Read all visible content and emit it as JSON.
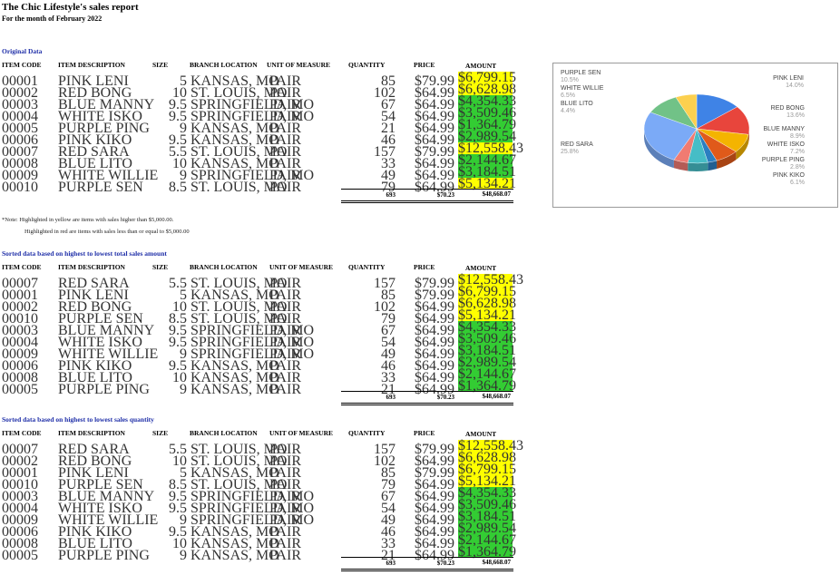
{
  "report": {
    "title": "The Chic Lifestyle's sales report",
    "subtitle": "For the month of February 2022"
  },
  "headers": {
    "item_code": "ITEM CODE",
    "item_description": "ITEM DESCRIPTION",
    "size": "SIZE",
    "branch_location": "BRANCH LOCATION",
    "unit_of_measure": "UNIT OF MEASURE",
    "quantity": "QUANTITY",
    "price": "PRICE",
    "amount": "AMOUNT"
  },
  "colors": {
    "yellow": "#ffff00",
    "green": "#33cc33",
    "section_title": "#1f2fa8"
  },
  "sections": [
    {
      "title": "Original Data",
      "rows": [
        {
          "code": "00001",
          "desc": "PINK LENI",
          "size": "5",
          "city": "KANSAS, MO",
          "uom": "PAIR",
          "qty": "85",
          "price": "$79.99",
          "amount": "$6,799.15",
          "hl": "yellow"
        },
        {
          "code": "00002",
          "desc": "RED BONG",
          "size": "10",
          "city": "ST. LOUIS, MO",
          "uom": "PAIR",
          "qty": "102",
          "price": "$64.99",
          "amount": "$6,628.98",
          "hl": "yellow"
        },
        {
          "code": "00003",
          "desc": "BLUE MANNY",
          "size": "9.5",
          "city": "SPRINGFIELD, MO",
          "uom": "PAIR",
          "qty": "67",
          "price": "$64.99",
          "amount": "$4,354.33",
          "hl": "green"
        },
        {
          "code": "00004",
          "desc": "WHITE ISKO",
          "size": "9.5",
          "city": "SPRINGFIELD, MO",
          "uom": "PAIR",
          "qty": "54",
          "price": "$64.99",
          "amount": "$3,509.46",
          "hl": "green"
        },
        {
          "code": "00005",
          "desc": "PURPLE PING",
          "size": "9",
          "city": "KANSAS, MO",
          "uom": "PAIR",
          "qty": "21",
          "price": "$64.99",
          "amount": "$1,364.79",
          "hl": "green"
        },
        {
          "code": "00006",
          "desc": "PINK KIKO",
          "size": "9.5",
          "city": "KANSAS, MO",
          "uom": "PAIR",
          "qty": "46",
          "price": "$64.99",
          "amount": "$2,989.54",
          "hl": "green"
        },
        {
          "code": "00007",
          "desc": "RED SARA",
          "size": "5.5",
          "city": "ST. LOUIS, MO",
          "uom": "PAIR",
          "qty": "157",
          "price": "$79.99",
          "amount": "$12,558.43",
          "hl": "yellow"
        },
        {
          "code": "00008",
          "desc": "BLUE LITO",
          "size": "10",
          "city": "KANSAS, MO",
          "uom": "PAIR",
          "qty": "33",
          "price": "$64.99",
          "amount": "$2,144.67",
          "hl": "green"
        },
        {
          "code": "00009",
          "desc": "WHITE WILLIE",
          "size": "9",
          "city": "SPRINGFIELD, MO",
          "uom": "PAIR",
          "qty": "49",
          "price": "$64.99",
          "amount": "$3,184.51",
          "hl": "green"
        },
        {
          "code": "00010",
          "desc": "PURPLE SEN",
          "size": "8.5",
          "city": "ST. LOUIS, MO",
          "uom": "PAIR",
          "qty": "79",
          "price": "$64.99",
          "amount": "$5,134.21",
          "hl": "yellow"
        }
      ],
      "total": {
        "qty": "693",
        "price": "$70.23",
        "amount": "$48,668.07"
      }
    },
    {
      "title": "Sorted data based on highest to lowest total sales amount",
      "rows": [
        {
          "code": "00007",
          "desc": "RED SARA",
          "size": "5.5",
          "city": "ST. LOUIS, MO",
          "uom": "PAIR",
          "qty": "157",
          "price": "$79.99",
          "amount": "$12,558.43",
          "hl": "yellow"
        },
        {
          "code": "00001",
          "desc": "PINK LENI",
          "size": "5",
          "city": "KANSAS, MO",
          "uom": "PAIR",
          "qty": "85",
          "price": "$79.99",
          "amount": "$6,799.15",
          "hl": "yellow"
        },
        {
          "code": "00002",
          "desc": "RED BONG",
          "size": "10",
          "city": "ST. LOUIS, MO",
          "uom": "PAIR",
          "qty": "102",
          "price": "$64.99",
          "amount": "$6,628.98",
          "hl": "yellow"
        },
        {
          "code": "00010",
          "desc": "PURPLE SEN",
          "size": "8.5",
          "city": "ST. LOUIS, MO",
          "uom": "PAIR",
          "qty": "79",
          "price": "$64.99",
          "amount": "$5,134.21",
          "hl": "yellow"
        },
        {
          "code": "00003",
          "desc": "BLUE MANNY",
          "size": "9.5",
          "city": "SPRINGFIELD, MO",
          "uom": "PAIR",
          "qty": "67",
          "price": "$64.99",
          "amount": "$4,354.33",
          "hl": "green"
        },
        {
          "code": "00004",
          "desc": "WHITE ISKO",
          "size": "9.5",
          "city": "SPRINGFIELD, MO",
          "uom": "PAIR",
          "qty": "54",
          "price": "$64.99",
          "amount": "$3,509.46",
          "hl": "green"
        },
        {
          "code": "00009",
          "desc": "WHITE WILLIE",
          "size": "9",
          "city": "SPRINGFIELD, MO",
          "uom": "PAIR",
          "qty": "49",
          "price": "$64.99",
          "amount": "$3,184.51",
          "hl": "green"
        },
        {
          "code": "00006",
          "desc": "PINK KIKO",
          "size": "9.5",
          "city": "KANSAS, MO",
          "uom": "PAIR",
          "qty": "46",
          "price": "$64.99",
          "amount": "$2,989.54",
          "hl": "green"
        },
        {
          "code": "00008",
          "desc": "BLUE LITO",
          "size": "10",
          "city": "KANSAS, MO",
          "uom": "PAIR",
          "qty": "33",
          "price": "$64.99",
          "amount": "$2,144.67",
          "hl": "green"
        },
        {
          "code": "00005",
          "desc": "PURPLE PING",
          "size": "9",
          "city": "KANSAS, MO",
          "uom": "PAIR",
          "qty": "21",
          "price": "$64.99",
          "amount": "$1,364.79",
          "hl": "green"
        }
      ],
      "total": {
        "qty": "693",
        "price": "$70.23",
        "amount": "$48,668.07"
      }
    },
    {
      "title": "Sorted data based on highest to lowest sales quantity",
      "rows": [
        {
          "code": "00007",
          "desc": "RED SARA",
          "size": "5.5",
          "city": "ST. LOUIS, MO",
          "uom": "PAIR",
          "qty": "157",
          "price": "$79.99",
          "amount": "$12,558.43",
          "hl": "yellow"
        },
        {
          "code": "00002",
          "desc": "RED BONG",
          "size": "10",
          "city": "ST. LOUIS, MO",
          "uom": "PAIR",
          "qty": "102",
          "price": "$64.99",
          "amount": "$6,628.98",
          "hl": "yellow"
        },
        {
          "code": "00001",
          "desc": "PINK LENI",
          "size": "5",
          "city": "KANSAS, MO",
          "uom": "PAIR",
          "qty": "85",
          "price": "$79.99",
          "amount": "$6,799.15",
          "hl": "yellow"
        },
        {
          "code": "00010",
          "desc": "PURPLE SEN",
          "size": "8.5",
          "city": "ST. LOUIS, MO",
          "uom": "PAIR",
          "qty": "79",
          "price": "$64.99",
          "amount": "$5,134.21",
          "hl": "yellow"
        },
        {
          "code": "00003",
          "desc": "BLUE MANNY",
          "size": "9.5",
          "city": "SPRINGFIELD, MO",
          "uom": "PAIR",
          "qty": "67",
          "price": "$64.99",
          "amount": "$4,354.33",
          "hl": "green"
        },
        {
          "code": "00004",
          "desc": "WHITE ISKO",
          "size": "9.5",
          "city": "SPRINGFIELD, MO",
          "uom": "PAIR",
          "qty": "54",
          "price": "$64.99",
          "amount": "$3,509.46",
          "hl": "green"
        },
        {
          "code": "00009",
          "desc": "WHITE WILLIE",
          "size": "9",
          "city": "SPRINGFIELD, MO",
          "uom": "PAIR",
          "qty": "49",
          "price": "$64.99",
          "amount": "$3,184.51",
          "hl": "green"
        },
        {
          "code": "00006",
          "desc": "PINK KIKO",
          "size": "9.5",
          "city": "KANSAS, MO",
          "uom": "PAIR",
          "qty": "46",
          "price": "$64.99",
          "amount": "$2,989.54",
          "hl": "green"
        },
        {
          "code": "00008",
          "desc": "BLUE LITO",
          "size": "10",
          "city": "KANSAS, MO",
          "uom": "PAIR",
          "qty": "33",
          "price": "$64.99",
          "amount": "$2,144.67",
          "hl": "green"
        },
        {
          "code": "00005",
          "desc": "PURPLE PING",
          "size": "9",
          "city": "KANSAS, MO",
          "uom": "PAIR",
          "qty": "21",
          "price": "$64.99",
          "amount": "$1,364.79",
          "hl": "green"
        }
      ],
      "total": {
        "qty": "693",
        "price": "$70.23",
        "amount": "$48,668.07"
      }
    }
  ],
  "note": {
    "line1": "*Note: Highlighted in yellow are items with sales higher than $5,000.00.",
    "line2": "Highlighted in red are items with sales less than or equal to $5,000.00"
  },
  "chart_data": {
    "type": "pie",
    "categories": [
      "PINK LENI",
      "RED BONG",
      "BLUE MANNY",
      "WHITE ISKO",
      "PURPLE PING",
      "PINK KIKO",
      "RED SARA",
      "BLUE LITO",
      "WHITE WILLIE",
      "PURPLE SEN"
    ],
    "values": [
      14.0,
      13.6,
      8.9,
      7.2,
      2.8,
      6.1,
      25.8,
      4.4,
      6.5,
      10.5
    ],
    "labels": [
      "14.0%",
      "13.6%",
      "8.9%",
      "7.2%",
      "2.8%",
      "6.1%",
      "25.8%",
      "4.4%",
      "6.5%",
      "10.5%"
    ],
    "colors": [
      "#3f83e6",
      "#e8453c",
      "#f4b400",
      "#e05a1a",
      "#2b7fc1",
      "#46bdc6",
      "#7baaf7",
      "#f07b72",
      "#fcd04f",
      "#71c287"
    ]
  }
}
